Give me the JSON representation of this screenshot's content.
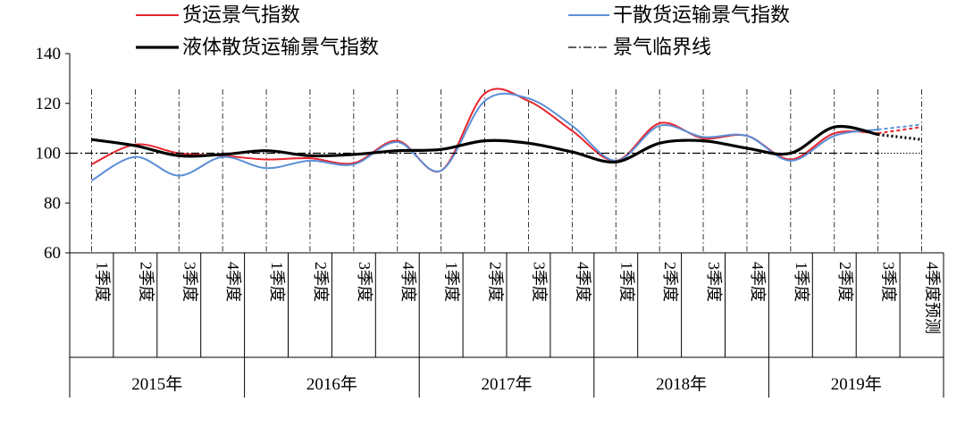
{
  "chart_data": {
    "type": "line",
    "categories": [
      "1季度",
      "2季度",
      "3季度",
      "4季度",
      "1季度",
      "2季度",
      "3季度",
      "4季度",
      "1季度",
      "2季度",
      "3季度",
      "4季度",
      "1季度",
      "2季度",
      "3季度",
      "4季度",
      "1季度",
      "2季度",
      "3季度",
      "4季度预测"
    ],
    "groups": [
      {
        "label": "2015年",
        "span": 4
      },
      {
        "label": "2016年",
        "span": 4
      },
      {
        "label": "2017年",
        "span": 4
      },
      {
        "label": "2018年",
        "span": 4
      },
      {
        "label": "2019年",
        "span": 4
      }
    ],
    "y_ticks": [
      "60",
      "80",
      "100",
      "120",
      "140"
    ],
    "ylim": [
      60,
      140
    ],
    "forecast_from_index": 18,
    "series": [
      {
        "name": "货运景气指数",
        "color": "#e8242b",
        "style": "solid",
        "values": [
          95.5,
          103.5,
          100.0,
          99.0,
          97.5,
          98.0,
          96.0,
          105.0,
          93.0,
          124.0,
          121.0,
          109.0,
          97.0,
          112.0,
          106.0,
          107.0,
          97.5,
          108.0,
          108.0,
          110.5
        ]
      },
      {
        "name": "干散货运输景气指数",
        "color": "#5b8fd6",
        "style": "solid",
        "values": [
          89.0,
          98.5,
          91.0,
          98.5,
          94.0,
          97.0,
          95.5,
          104.5,
          93.0,
          121.0,
          122.0,
          111.0,
          97.0,
          111.0,
          106.5,
          107.0,
          97.0,
          107.0,
          109.5,
          111.5
        ]
      },
      {
        "name": "液体散货运输景气指数",
        "color": "#000000",
        "style": "solid-thick",
        "values": [
          105.5,
          103.0,
          99.0,
          99.5,
          101.0,
          99.0,
          99.5,
          101.0,
          101.5,
          105.0,
          104.0,
          100.5,
          96.5,
          104.0,
          105.0,
          102.0,
          100.0,
          110.5,
          107.5,
          105.5
        ]
      },
      {
        "name": "景气临界线",
        "color": "#000000",
        "style": "dash-dot",
        "values": [
          100,
          100,
          100,
          100,
          100,
          100,
          100,
          100,
          100,
          100,
          100,
          100,
          100,
          100,
          100,
          100,
          100,
          100,
          100,
          100
        ]
      }
    ]
  }
}
